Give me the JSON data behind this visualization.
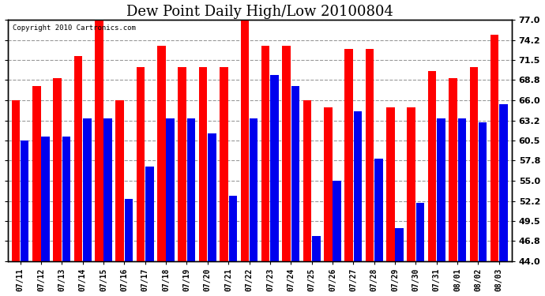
{
  "title": "Dew Point Daily High/Low 20100804",
  "copyright": "Copyright 2010 Cartronics.com",
  "categories": [
    "07/11",
    "07/12",
    "07/13",
    "07/14",
    "07/15",
    "07/16",
    "07/17",
    "07/18",
    "07/19",
    "07/20",
    "07/21",
    "07/22",
    "07/23",
    "07/24",
    "07/25",
    "07/26",
    "07/27",
    "07/28",
    "07/29",
    "07/30",
    "07/31",
    "08/01",
    "08/02",
    "08/03"
  ],
  "highs": [
    66.0,
    68.0,
    69.0,
    72.0,
    77.0,
    66.0,
    70.5,
    73.5,
    70.5,
    70.5,
    70.5,
    77.0,
    73.5,
    73.5,
    66.0,
    65.0,
    73.0,
    73.0,
    65.0,
    65.0,
    70.0,
    69.0,
    70.5,
    75.0
  ],
  "lows": [
    60.5,
    61.0,
    61.0,
    63.5,
    63.5,
    52.5,
    57.0,
    63.5,
    63.5,
    61.5,
    53.0,
    63.5,
    69.5,
    68.0,
    47.5,
    55.0,
    64.5,
    58.0,
    48.5,
    52.0,
    63.5,
    63.5,
    63.0,
    65.5
  ],
  "high_color": "#FF0000",
  "low_color": "#0000EE",
  "bg_color": "#FFFFFF",
  "plot_bg_color": "#FFFFFF",
  "grid_color": "#999999",
  "yticks": [
    44.0,
    46.8,
    49.5,
    52.2,
    55.0,
    57.8,
    60.5,
    63.2,
    66.0,
    68.8,
    71.5,
    74.2,
    77.0
  ],
  "ymin": 44.0,
  "ymax": 77.0,
  "title_fontsize": 13
}
